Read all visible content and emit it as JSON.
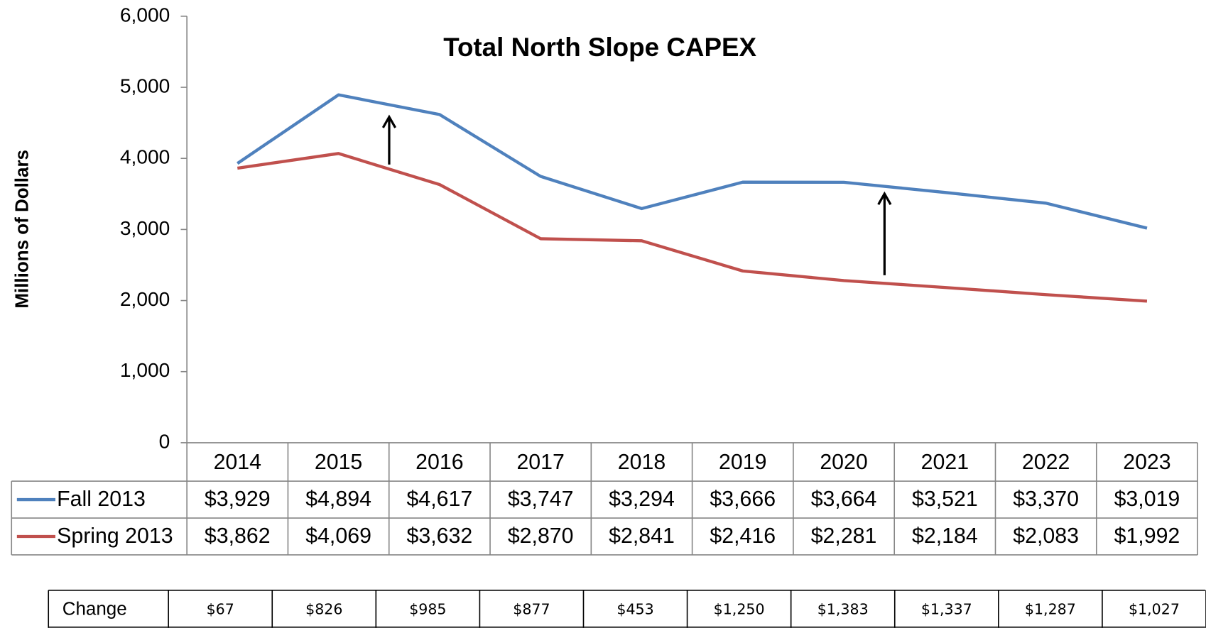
{
  "chart_data": {
    "type": "line",
    "title": "Total North Slope CAPEX",
    "y_label": "Millions of Dollars",
    "categories": [
      "2014",
      "2015",
      "2016",
      "2017",
      "2018",
      "2019",
      "2020",
      "2021",
      "2022",
      "2023"
    ],
    "series": [
      {
        "name": "Fall 2013",
        "color": "#4f81bd",
        "values": [
          3929,
          4894,
          4617,
          3747,
          3294,
          3666,
          3664,
          3521,
          3370,
          3019
        ],
        "value_labels": [
          "$3,929",
          "$4,894",
          "$4,617",
          "$3,747",
          "$3,294",
          "$3,666",
          "$3,664",
          "$3,521",
          "$3,370",
          "$3,019"
        ]
      },
      {
        "name": "Spring 2013",
        "color": "#c0504d",
        "values": [
          3862,
          4069,
          3632,
          2870,
          2841,
          2416,
          2281,
          2184,
          2083,
          1992
        ],
        "value_labels": [
          "$3,862",
          "$4,069",
          "$3,632",
          "$2,870",
          "$2,841",
          "$2,416",
          "$2,281",
          "$2,184",
          "$2,083",
          "$1,992"
        ]
      }
    ],
    "ylim": [
      0,
      6000
    ],
    "yticks": [
      0,
      {
        "value": 1000,
        "label": "1,000"
      },
      {
        "value": 2000,
        "label": "2,000"
      },
      {
        "value": 3000,
        "label": "3,000"
      },
      {
        "value": 4000,
        "label": "4,000"
      },
      {
        "value": 5000,
        "label": "5,000"
      },
      {
        "value": 6000,
        "label": "6,000"
      }
    ],
    "grid": false
  },
  "change_table": {
    "label": "Change",
    "cells": [
      "$67",
      "$826",
      "$985",
      "$877",
      "$453",
      "$1,250",
      "$1,383",
      "$1,337",
      "$1,287",
      "$1,027"
    ]
  }
}
